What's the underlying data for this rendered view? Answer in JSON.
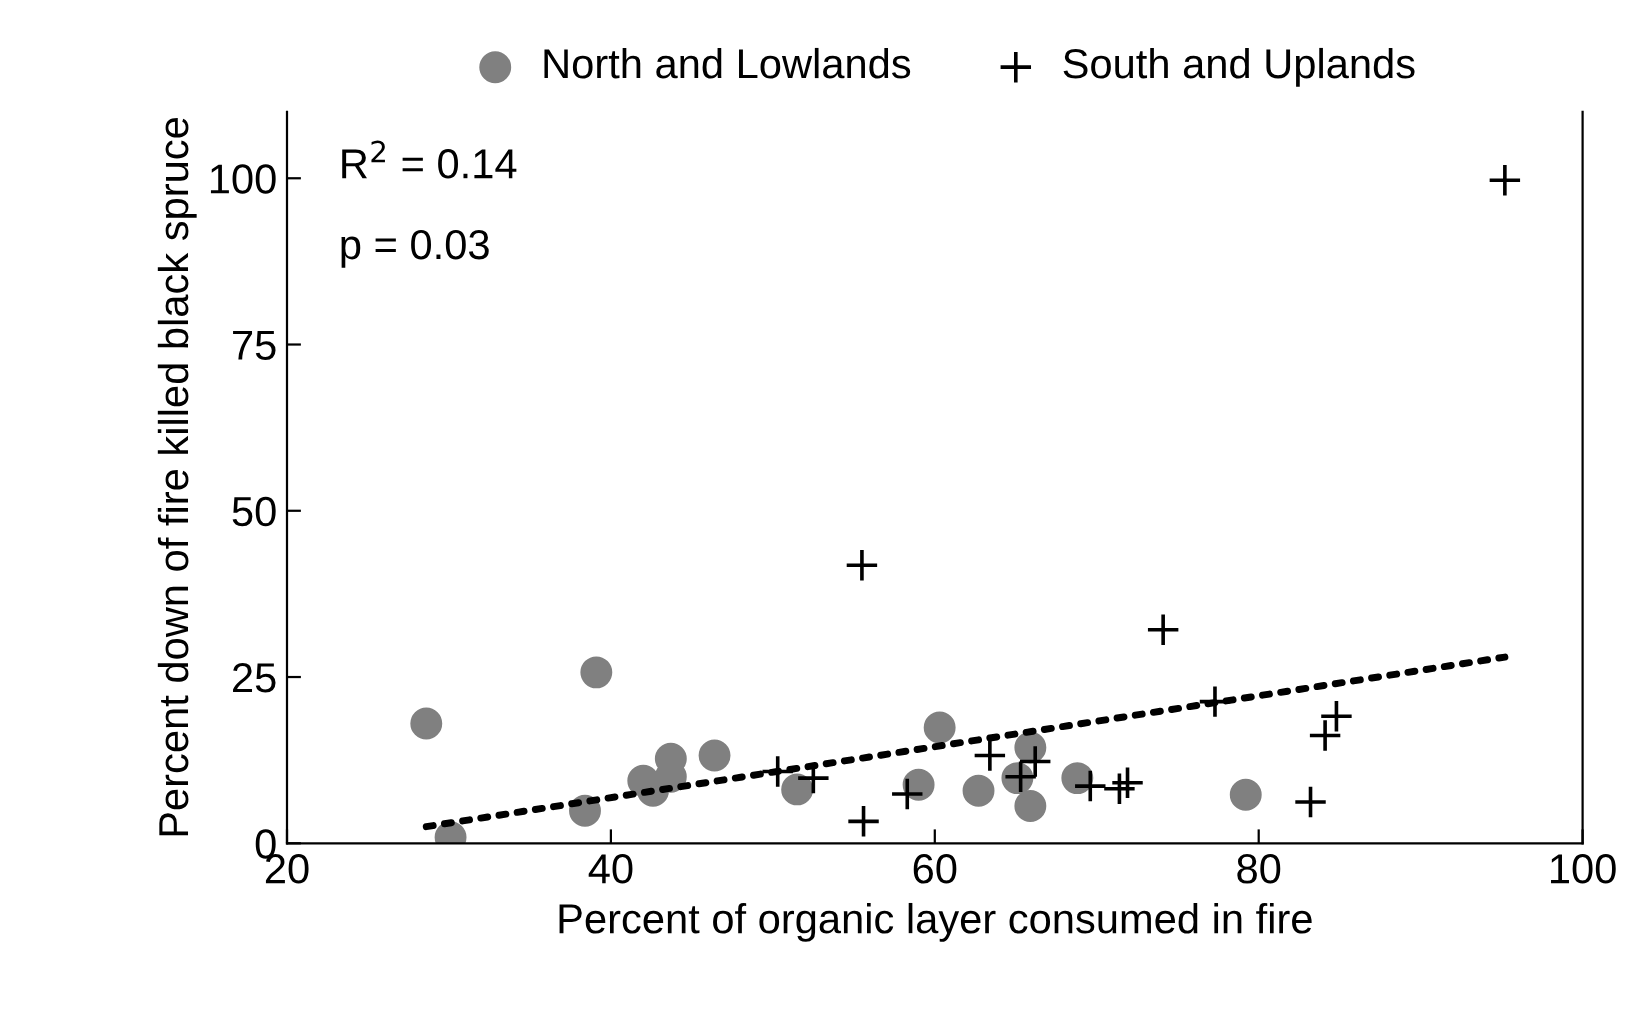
{
  "chart_data": {
    "type": "scatter",
    "xlabel": "Percent of organic layer consumed in fire",
    "ylabel": "Percent down of fire killed black spruce",
    "xlim": [
      20,
      100
    ],
    "xticks": [
      20,
      40,
      60,
      80,
      100
    ],
    "ylim": [
      0,
      110
    ],
    "yticks": [
      0,
      25,
      50,
      75,
      100
    ],
    "grid": false,
    "legend": "top",
    "annotations": [
      "R$^{2}$ = 0.14",
      "p = 0.03"
    ],
    "series": [
      {
        "name": "North and Lowlands",
        "color": "#808080",
        "marker": "circle",
        "x": [
          28.6,
          39.1,
          30.1,
          38.4,
          42.0,
          42.6,
          43.7,
          43.7,
          46.4,
          51.5,
          59.0,
          60.3,
          62.7,
          65.9,
          65.9,
          65.1,
          68.8,
          79.2
        ],
        "values": [
          18.0,
          25.7,
          0.9,
          4.9,
          9.4,
          7.9,
          12.7,
          10.0,
          13.2,
          8.1,
          8.8,
          17.4,
          7.9,
          14.4,
          5.6,
          9.8,
          9.8,
          7.3
        ]
      },
      {
        "name": "South and Uplands",
        "color": "#000000",
        "marker": "cross",
        "x": [
          50.3,
          52.5,
          55.6,
          58.3,
          63.4,
          65.3,
          66.2,
          69.6,
          71.4,
          71.9,
          74.1,
          77.3,
          84.1,
          84.8,
          83.2,
          55.5,
          95.2
        ],
        "values": [
          10.8,
          9.8,
          3.3,
          7.4,
          13.2,
          10.0,
          12.3,
          8.6,
          8.2,
          9.1,
          32.1,
          21.3,
          16.2,
          19.1,
          6.2,
          41.8,
          99.7
        ]
      },
      {
        "type": "line",
        "color": "#000000",
        "line_style": "dotted",
        "x": [
          28.6,
          95.2
        ],
        "values": [
          2.5,
          28.0
        ]
      }
    ]
  }
}
